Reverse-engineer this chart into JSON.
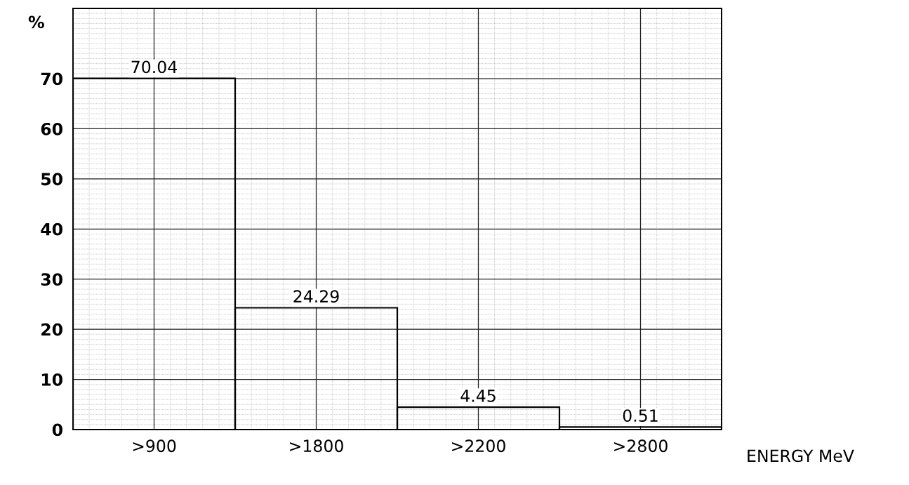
{
  "chart_data": {
    "type": "bar",
    "ylabel": "%",
    "xlabel": "ENERGY MeV",
    "categories": [
      ">900",
      ">1800",
      ">2200",
      ">2800"
    ],
    "values": [
      70.04,
      24.29,
      4.45,
      0.51
    ],
    "color": "#000000",
    "ylim": [
      0,
      84
    ],
    "yticks": [
      0,
      10,
      20,
      30,
      40,
      50,
      60,
      70
    ],
    "grid": true,
    "data_labels": true
  }
}
